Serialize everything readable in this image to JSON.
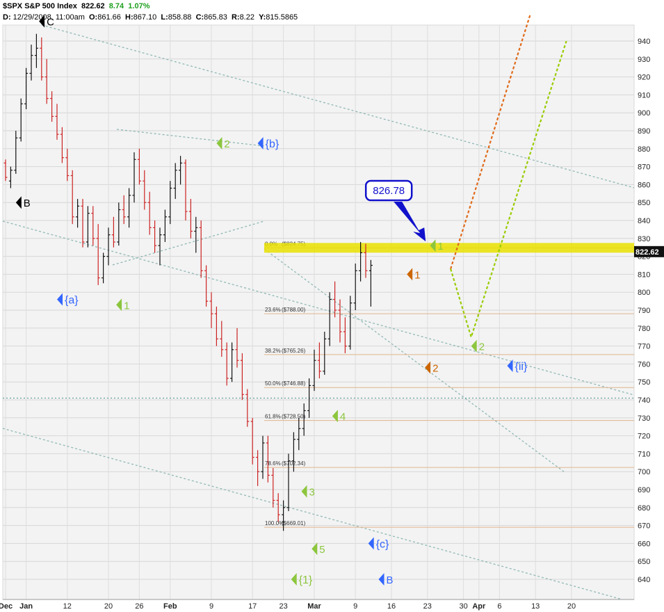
{
  "header": {
    "symbol": "$SPX",
    "name": "S&P 500 Index",
    "last": "822.62",
    "change": "8.74",
    "change_pct": "1.07%",
    "date_label": "D:",
    "date": "12/29/2008",
    "time": "11:00am",
    "o_label": "O:",
    "open": "861.66",
    "h_label": "H:",
    "high": "867.10",
    "l_label": "L:",
    "low": "858.88",
    "c_label": "C:",
    "close": "865.83",
    "r_label": "R:",
    "range": "8.22",
    "y_label": "Y:",
    "y_value": "815.5865"
  },
  "chart_data": {
    "type": "candlestick",
    "y_range": [
      630,
      950
    ],
    "y_ticks": [
      640,
      650,
      660,
      670,
      680,
      690,
      700,
      710,
      720,
      730,
      740,
      750,
      760,
      770,
      780,
      790,
      800,
      810,
      820,
      830,
      840,
      850,
      860,
      870,
      880,
      890,
      900,
      910,
      920,
      930,
      940
    ],
    "x_ticks": [
      {
        "label": "Dec",
        "day": 0
      },
      {
        "label": "Jan",
        "day": 4
      },
      {
        "label": "12",
        "day": 12
      },
      {
        "label": "20",
        "day": 20
      },
      {
        "label": "26",
        "day": 26
      },
      {
        "label": "Feb",
        "day": 32
      },
      {
        "label": "9",
        "day": 40
      },
      {
        "label": "17",
        "day": 48
      },
      {
        "label": "23",
        "day": 54
      },
      {
        "label": "Mar",
        "day": 60
      },
      {
        "label": "9",
        "day": 68
      },
      {
        "label": "16",
        "day": 75
      },
      {
        "label": "23",
        "day": 82
      },
      {
        "label": "30",
        "day": 89
      },
      {
        "label": "Apr",
        "day": 92
      },
      {
        "label": "6",
        "day": 96
      },
      {
        "label": "13",
        "day": 103
      },
      {
        "label": "20",
        "day": 110
      }
    ],
    "last_price_label": "822.62",
    "callout": {
      "text": "826.78",
      "value": 826.78,
      "day": 73
    },
    "resistance_band": {
      "value": 824.75
    },
    "fibonacci": [
      {
        "pct": "0.0%",
        "value": 824.75,
        "label": "($824.75)"
      },
      {
        "pct": "23.6%",
        "value": 788.0,
        "label": "($788.00)"
      },
      {
        "pct": "38.2%",
        "value": 765.26,
        "label": "($765.26)"
      },
      {
        "pct": "50.0%",
        "value": 746.88,
        "label": "($746.88)"
      },
      {
        "pct": "61.8%",
        "value": 728.5,
        "label": "($728.50)"
      },
      {
        "pct": "78.6%",
        "value": 702.34,
        "label": "($702.34)"
      },
      {
        "pct": "100.0%",
        "value": 669.01,
        "label": "($669.01)"
      }
    ],
    "horizontal_dotted": {
      "value": 741
    },
    "wave_labels": [
      {
        "text": "B",
        "day": 2,
        "price": 850,
        "color": "#000000"
      },
      {
        "text": "C",
        "day": 6.5,
        "price": 951,
        "color": "#000000"
      },
      {
        "text": "{a}",
        "day": 10,
        "price": 796,
        "color": "#3366ff"
      },
      {
        "text": "1",
        "day": 21.5,
        "price": 793,
        "color": "#8cc63e"
      },
      {
        "text": "2",
        "day": 41,
        "price": 883,
        "color": "#8cc63e"
      },
      {
        "text": "{b}",
        "day": 49,
        "price": 883,
        "color": "#3366ff"
      },
      {
        "text": "4",
        "day": 63.5,
        "price": 731,
        "color": "#8cc63e"
      },
      {
        "text": "3",
        "day": 57.5,
        "price": 689,
        "color": "#8cc63e"
      },
      {
        "text": "5",
        "day": 59.5,
        "price": 657,
        "color": "#8cc63e"
      },
      {
        "text": "{1}",
        "day": 55.5,
        "price": 640,
        "color": "#8cc63e"
      },
      {
        "text": "{c}",
        "day": 70.5,
        "price": 660,
        "color": "#3366ff"
      },
      {
        "text": "B",
        "day": 72.5,
        "price": 640,
        "color": "#3366ff"
      },
      {
        "text": "1",
        "day": 78,
        "price": 810,
        "color": "#cc6600"
      },
      {
        "text": "2",
        "day": 81.5,
        "price": 758,
        "color": "#cc6600"
      },
      {
        "text": "1",
        "day": 82.5,
        "price": 826,
        "color": "#8cc63e"
      },
      {
        "text": "2",
        "day": 90.5,
        "price": 770,
        "color": "#8cc63e"
      },
      {
        "text": "{ii}",
        "day": 97.5,
        "price": 759,
        "color": "#3366ff"
      }
    ],
    "projections": [
      {
        "color": "#e06a1a",
        "points": [
          [
            86.5,
            813
          ],
          [
            102,
            955
          ]
        ]
      },
      {
        "color": "#99cc00",
        "points": [
          [
            86.5,
            813
          ],
          [
            90.5,
            775
          ],
          [
            109,
            940
          ]
        ]
      }
    ],
    "candles": [
      {
        "d": 0,
        "o": 872,
        "h": 874,
        "l": 862,
        "c": 864
      },
      {
        "d": 1,
        "o": 862,
        "h": 870,
        "l": 858,
        "c": 868
      },
      {
        "d": 2,
        "o": 868,
        "h": 890,
        "l": 866,
        "c": 886
      },
      {
        "d": 3,
        "o": 886,
        "h": 908,
        "l": 884,
        "c": 905
      },
      {
        "d": 4,
        "o": 905,
        "h": 925,
        "l": 902,
        "c": 922
      },
      {
        "d": 5,
        "o": 922,
        "h": 938,
        "l": 918,
        "c": 932
      },
      {
        "d": 6,
        "o": 932,
        "h": 944,
        "l": 925,
        "c": 936
      },
      {
        "d": 7,
        "o": 936,
        "h": 942,
        "l": 918,
        "c": 920
      },
      {
        "d": 8,
        "o": 920,
        "h": 930,
        "l": 905,
        "c": 908
      },
      {
        "d": 9,
        "o": 908,
        "h": 912,
        "l": 895,
        "c": 898
      },
      {
        "d": 10,
        "o": 898,
        "h": 905,
        "l": 885,
        "c": 888
      },
      {
        "d": 11,
        "o": 888,
        "h": 892,
        "l": 872,
        "c": 875
      },
      {
        "d": 12,
        "o": 875,
        "h": 880,
        "l": 862,
        "c": 865
      },
      {
        "d": 13,
        "o": 865,
        "h": 868,
        "l": 838,
        "c": 842
      },
      {
        "d": 14,
        "o": 842,
        "h": 852,
        "l": 836,
        "c": 848
      },
      {
        "d": 15,
        "o": 848,
        "h": 852,
        "l": 825,
        "c": 828
      },
      {
        "d": 16,
        "o": 828,
        "h": 848,
        "l": 825,
        "c": 844
      },
      {
        "d": 17,
        "o": 844,
        "h": 848,
        "l": 826,
        "c": 830
      },
      {
        "d": 18,
        "o": 830,
        "h": 838,
        "l": 804,
        "c": 808
      },
      {
        "d": 19,
        "o": 808,
        "h": 822,
        "l": 805,
        "c": 820
      },
      {
        "d": 20,
        "o": 820,
        "h": 836,
        "l": 815,
        "c": 832
      },
      {
        "d": 21,
        "o": 832,
        "h": 842,
        "l": 825,
        "c": 828
      },
      {
        "d": 22,
        "o": 828,
        "h": 850,
        "l": 826,
        "c": 846
      },
      {
        "d": 23,
        "o": 846,
        "h": 854,
        "l": 838,
        "c": 842
      },
      {
        "d": 24,
        "o": 842,
        "h": 858,
        "l": 836,
        "c": 854
      },
      {
        "d": 25,
        "o": 854,
        "h": 878,
        "l": 850,
        "c": 874
      },
      {
        "d": 26,
        "o": 874,
        "h": 880,
        "l": 860,
        "c": 862
      },
      {
        "d": 27,
        "o": 862,
        "h": 868,
        "l": 846,
        "c": 850
      },
      {
        "d": 28,
        "o": 850,
        "h": 856,
        "l": 832,
        "c": 836
      },
      {
        "d": 29,
        "o": 836,
        "h": 840,
        "l": 822,
        "c": 826
      },
      {
        "d": 30,
        "o": 826,
        "h": 836,
        "l": 815,
        "c": 832
      },
      {
        "d": 31,
        "o": 832,
        "h": 846,
        "l": 828,
        "c": 842
      },
      {
        "d": 32,
        "o": 842,
        "h": 862,
        "l": 838,
        "c": 858
      },
      {
        "d": 33,
        "o": 858,
        "h": 872,
        "l": 852,
        "c": 868
      },
      {
        "d": 34,
        "o": 868,
        "h": 876,
        "l": 860,
        "c": 872
      },
      {
        "d": 35,
        "o": 872,
        "h": 874,
        "l": 840,
        "c": 845
      },
      {
        "d": 36,
        "o": 845,
        "h": 852,
        "l": 830,
        "c": 834
      },
      {
        "d": 37,
        "o": 834,
        "h": 842,
        "l": 822,
        "c": 836
      },
      {
        "d": 38,
        "o": 836,
        "h": 840,
        "l": 808,
        "c": 812
      },
      {
        "d": 39,
        "o": 812,
        "h": 815,
        "l": 792,
        "c": 795
      },
      {
        "d": 40,
        "o": 795,
        "h": 800,
        "l": 780,
        "c": 788
      },
      {
        "d": 41,
        "o": 788,
        "h": 792,
        "l": 770,
        "c": 774
      },
      {
        "d": 42,
        "o": 774,
        "h": 784,
        "l": 764,
        "c": 768
      },
      {
        "d": 43,
        "o": 768,
        "h": 772,
        "l": 748,
        "c": 752
      },
      {
        "d": 44,
        "o": 752,
        "h": 772,
        "l": 750,
        "c": 768
      },
      {
        "d": 45,
        "o": 768,
        "h": 780,
        "l": 758,
        "c": 762
      },
      {
        "d": 46,
        "o": 762,
        "h": 766,
        "l": 740,
        "c": 743
      },
      {
        "d": 47,
        "o": 743,
        "h": 746,
        "l": 725,
        "c": 728
      },
      {
        "d": 48,
        "o": 728,
        "h": 730,
        "l": 704,
        "c": 708
      },
      {
        "d": 49,
        "o": 708,
        "h": 712,
        "l": 692,
        "c": 700
      },
      {
        "d": 50,
        "o": 700,
        "h": 720,
        "l": 696,
        "c": 716
      },
      {
        "d": 51,
        "o": 716,
        "h": 720,
        "l": 694,
        "c": 698
      },
      {
        "d": 52,
        "o": 698,
        "h": 702,
        "l": 680,
        "c": 684
      },
      {
        "d": 53,
        "o": 684,
        "h": 688,
        "l": 672,
        "c": 676
      },
      {
        "d": 54,
        "o": 676,
        "h": 684,
        "l": 667,
        "c": 680
      },
      {
        "d": 55,
        "o": 680,
        "h": 710,
        "l": 678,
        "c": 706
      },
      {
        "d": 56,
        "o": 706,
        "h": 722,
        "l": 700,
        "c": 718
      },
      {
        "d": 57,
        "o": 718,
        "h": 730,
        "l": 712,
        "c": 724
      },
      {
        "d": 58,
        "o": 724,
        "h": 738,
        "l": 720,
        "c": 734
      },
      {
        "d": 59,
        "o": 734,
        "h": 752,
        "l": 730,
        "c": 748
      },
      {
        "d": 60,
        "o": 748,
        "h": 768,
        "l": 745,
        "c": 762
      },
      {
        "d": 61,
        "o": 762,
        "h": 772,
        "l": 752,
        "c": 756
      },
      {
        "d": 62,
        "o": 756,
        "h": 778,
        "l": 754,
        "c": 774
      },
      {
        "d": 63,
        "o": 774,
        "h": 800,
        "l": 770,
        "c": 796
      },
      {
        "d": 64,
        "o": 796,
        "h": 806,
        "l": 786,
        "c": 790
      },
      {
        "d": 65,
        "o": 790,
        "h": 796,
        "l": 772,
        "c": 778
      },
      {
        "d": 66,
        "o": 778,
        "h": 786,
        "l": 766,
        "c": 770
      },
      {
        "d": 67,
        "o": 770,
        "h": 798,
        "l": 768,
        "c": 794
      },
      {
        "d": 68,
        "o": 794,
        "h": 816,
        "l": 790,
        "c": 812
      },
      {
        "d": 69,
        "o": 812,
        "h": 828,
        "l": 806,
        "c": 822
      },
      {
        "d": 70,
        "o": 822,
        "h": 827,
        "l": 808,
        "c": 812
      },
      {
        "d": 71,
        "o": 812,
        "h": 818,
        "l": 792,
        "c": 815
      }
    ]
  }
}
